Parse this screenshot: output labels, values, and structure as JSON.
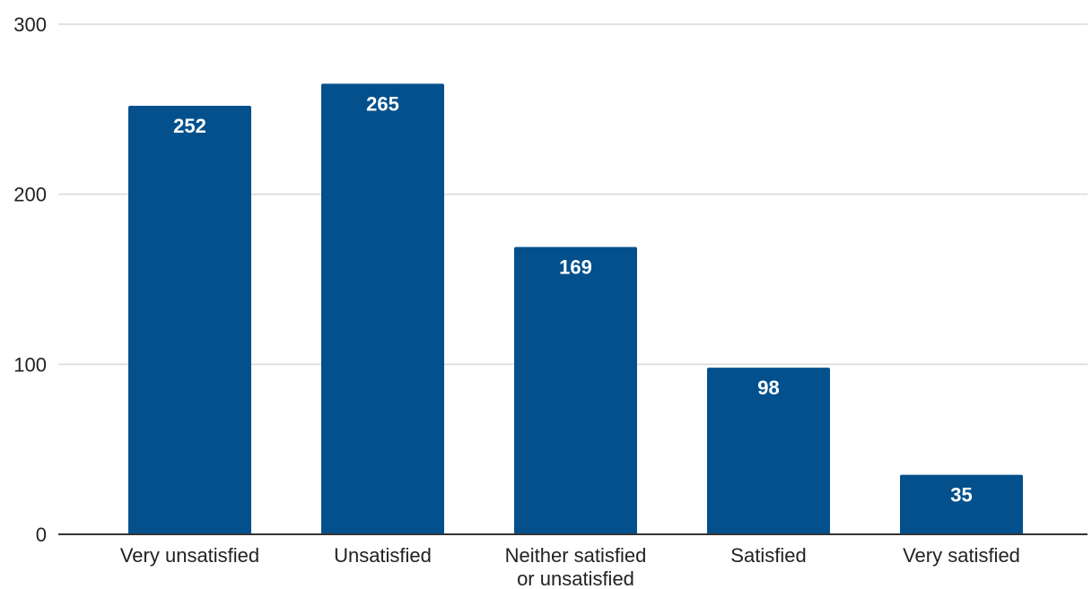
{
  "chart_data": {
    "type": "bar",
    "categories": [
      [
        "Very unsatisfied"
      ],
      [
        "Unsatisfied"
      ],
      [
        "Neither satisfied",
        "or unsatisfied"
      ],
      [
        "Satisfied"
      ],
      [
        "Very satisfied"
      ]
    ],
    "values": [
      252,
      265,
      169,
      98,
      35
    ],
    "data_labels": [
      "252",
      "265",
      "169",
      "98",
      "35"
    ],
    "title": "",
    "xlabel": "",
    "ylabel": "",
    "ylim": [
      0,
      300
    ],
    "yticks": [
      0,
      100,
      200,
      300
    ],
    "grid": true,
    "legend": "none",
    "bar_color": "#03508c",
    "label_color": "#ffffff"
  }
}
